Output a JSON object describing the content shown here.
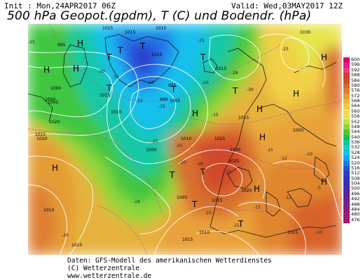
{
  "header": {
    "init": "Init : Mon,24APR2017 06Z",
    "valid": "Valid: Wed,03MAY2017 12Z",
    "title": "500 hPa Geopot.(gpdm), T (C) und Bodendr. (hPa)"
  },
  "legend": {
    "values": [
      "600",
      "596",
      "592",
      "588",
      "584",
      "580",
      "576",
      "572",
      "568",
      "564",
      "560",
      "556",
      "552",
      "548",
      "544",
      "540",
      "536",
      "532",
      "528",
      "524",
      "520",
      "516",
      "512",
      "508",
      "504",
      "500",
      "496",
      "492",
      "488",
      "484",
      "480",
      "476"
    ],
    "colors": [
      "#e0006e",
      "#e51c8c",
      "#e83c78",
      "#d43a3a",
      "#d14a2c",
      "#d8642c",
      "#de7e30",
      "#e49b34",
      "#e9b83c",
      "#eeca42",
      "#f3dc4c",
      "#e6e44c",
      "#c4e03c",
      "#8ed636",
      "#4ec832",
      "#18c050",
      "#10c89a",
      "#12cfd2",
      "#14c0ec",
      "#1aa2ee",
      "#2078ea",
      "#2454e0",
      "#2a3ed0",
      "#3032c2",
      "#3c2cb4",
      "#4a28a8",
      "#58249c",
      "#6a2294",
      "#7a208a",
      "#8a1c80",
      "#9a1a78",
      "#aa1870"
    ]
  },
  "map": {
    "pressure_centers": [
      {
        "label": "H"
      },
      {
        "label": "H"
      },
      {
        "label": "H"
      },
      {
        "label": "T"
      },
      {
        "label": "T"
      },
      {
        "label": "T"
      },
      {
        "label": "T"
      },
      {
        "label": "T"
      },
      {
        "label": "T"
      },
      {
        "label": "T"
      },
      {
        "label": "H"
      },
      {
        "label": "H"
      },
      {
        "label": "H"
      },
      {
        "label": "H"
      },
      {
        "label": "H"
      },
      {
        "label": "T"
      },
      {
        "label": "H"
      },
      {
        "label": "T"
      },
      {
        "label": "H"
      },
      {
        "label": "T"
      },
      {
        "label": "H"
      },
      {
        "label": "T"
      }
    ],
    "isobar_labels": [
      "1025",
      "1015",
      "1015",
      "1010",
      "995",
      "1000",
      "1015",
      "990",
      "1010",
      "1005",
      "1000",
      "1020",
      "1015",
      "1010",
      "1005",
      "1015",
      "1025",
      "1030",
      "1015",
      "1030",
      "1025",
      "1005",
      "1015",
      "1020",
      "1010",
      "1015",
      "1010",
      "1015",
      "1020",
      "1010",
      "1005",
      "1000",
      "995"
    ],
    "temp_labels": [
      "-25",
      "-30",
      "-35",
      "-32",
      "-30",
      "-25",
      "-20",
      "-28",
      "-30",
      "-35",
      "-25",
      "-20",
      "-15",
      "-18",
      "-20",
      "-25",
      "-15",
      "-10",
      "-12",
      "-15",
      "-18",
      "-20",
      "-10",
      "-15",
      "-10",
      "-5",
      "-12",
      "-15"
    ]
  },
  "footer": {
    "line1": "Daten: GFS-Modell des amerikanischen Wetterdienstes",
    "line2": "(C) Wetterzentrale",
    "line3": "www.wetterzentrale.de"
  }
}
